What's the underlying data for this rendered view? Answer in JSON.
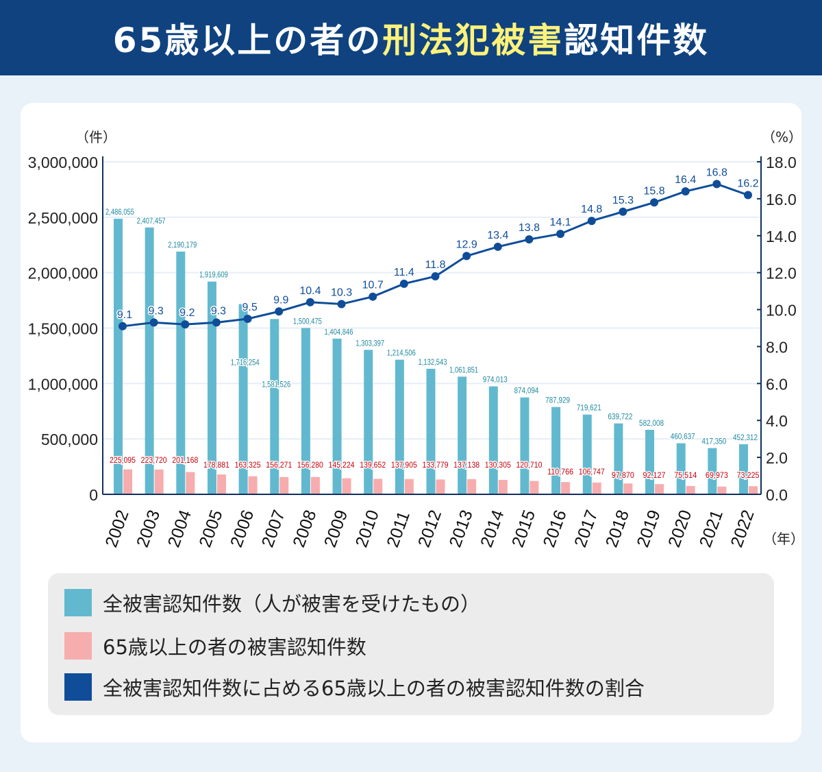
{
  "header": {
    "title_pre": "65歳以上の者の",
    "title_highlight": "刑法犯被害",
    "title_post": "認知件数"
  },
  "colors": {
    "total": "#62b9cf",
    "elderly": "#f7adad",
    "ratio": "#0f4d99",
    "total_label": "#1f8aa0",
    "elderly_label": "#c8000b",
    "header_bg": "#0f427f",
    "highlight": "#fff27a"
  },
  "chart_data": {
    "type": "bar+line",
    "title": "",
    "left_axis_unit": "（件）",
    "right_axis_unit": "（%）",
    "x_unit": "（年）",
    "ylim": [
      0,
      3000000
    ],
    "y2lim": [
      0,
      18
    ],
    "y_ticks": [
      "0",
      "500,000",
      "1,000,000",
      "1,500,000",
      "2,000,000",
      "2,500,000",
      "3,000,000"
    ],
    "y2_ticks": [
      "0.0",
      "2.0",
      "4.0",
      "6.0",
      "8.0",
      "10.0",
      "12.0",
      "14.0",
      "16.0",
      "18.0"
    ],
    "grid": true,
    "categories": [
      "2002",
      "2003",
      "2004",
      "2005",
      "2006",
      "2007",
      "2008",
      "2009",
      "2010",
      "2011",
      "2012",
      "2013",
      "2014",
      "2015",
      "2016",
      "2017",
      "2018",
      "2019",
      "2020",
      "2021",
      "2022"
    ],
    "series": [
      {
        "name": "全被害認知件数（人が被害を受けたもの）",
        "type": "bar",
        "axis": "left",
        "values": [
          2486055,
          2407457,
          2190179,
          1919609,
          1716254,
          1581526,
          1500475,
          1404846,
          1303397,
          1214506,
          1132543,
          1061851,
          974013,
          874094,
          787929,
          719621,
          639722,
          582008,
          460637,
          417350,
          452312
        ],
        "labels": [
          "2,486,055",
          "2,407,457",
          "2,190,179",
          "1,919,609",
          "1,716,254",
          "1,581,526",
          "1,500,475",
          "1,404,846",
          "1,303,397",
          "1,214,506",
          "1,132,543",
          "1,061,851",
          "974,013",
          "874,094",
          "787,929",
          "719,621",
          "639,722",
          "582,008",
          "460,637",
          "417,350",
          "452,312"
        ]
      },
      {
        "name": "65歳以上の者の被害認知件数",
        "type": "bar",
        "axis": "left",
        "values": [
          225095,
          223720,
          201168,
          178881,
          163325,
          156271,
          156280,
          145224,
          139652,
          137905,
          133779,
          137138,
          130305,
          120710,
          110766,
          106747,
          97870,
          92127,
          75514,
          69973,
          73225
        ],
        "labels": [
          "225,095",
          "223,720",
          "201,168",
          "178,881",
          "163,325",
          "156,271",
          "156,280",
          "145,224",
          "139,652",
          "137,905",
          "133,779",
          "137,138",
          "130,305",
          "120,710",
          "110,766",
          "106,747",
          "97,870",
          "92,127",
          "75,514",
          "69,973",
          "73,225"
        ]
      },
      {
        "name": "全被害認知件数に占める65歳以上の者の被害認知件数の割合",
        "type": "line",
        "axis": "right",
        "values": [
          9.1,
          9.3,
          9.2,
          9.3,
          9.5,
          9.9,
          10.4,
          10.3,
          10.7,
          11.4,
          11.8,
          12.9,
          13.4,
          13.8,
          14.1,
          14.8,
          15.3,
          15.8,
          16.4,
          16.8,
          16.2
        ],
        "labels": [
          "9.1",
          "9.3",
          "9.2",
          "9.3",
          "9.5",
          "9.9",
          "10.4",
          "10.3",
          "10.7",
          "11.4",
          "11.8",
          "12.9",
          "13.4",
          "13.8",
          "14.1",
          "14.8",
          "15.3",
          "15.8",
          "16.4",
          "16.8",
          "16.2"
        ]
      }
    ],
    "legend": "bottom"
  }
}
